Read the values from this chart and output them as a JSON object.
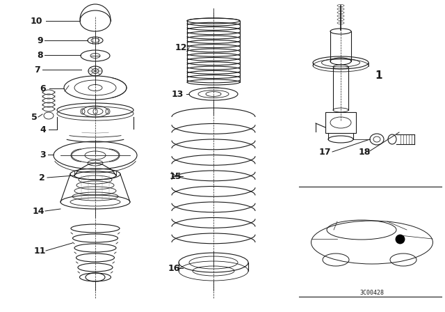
{
  "background_color": "#ffffff",
  "line_color": "#1a1a1a",
  "reference_code": "3C00428",
  "fig_width": 6.4,
  "fig_height": 4.48,
  "dpi": 100
}
